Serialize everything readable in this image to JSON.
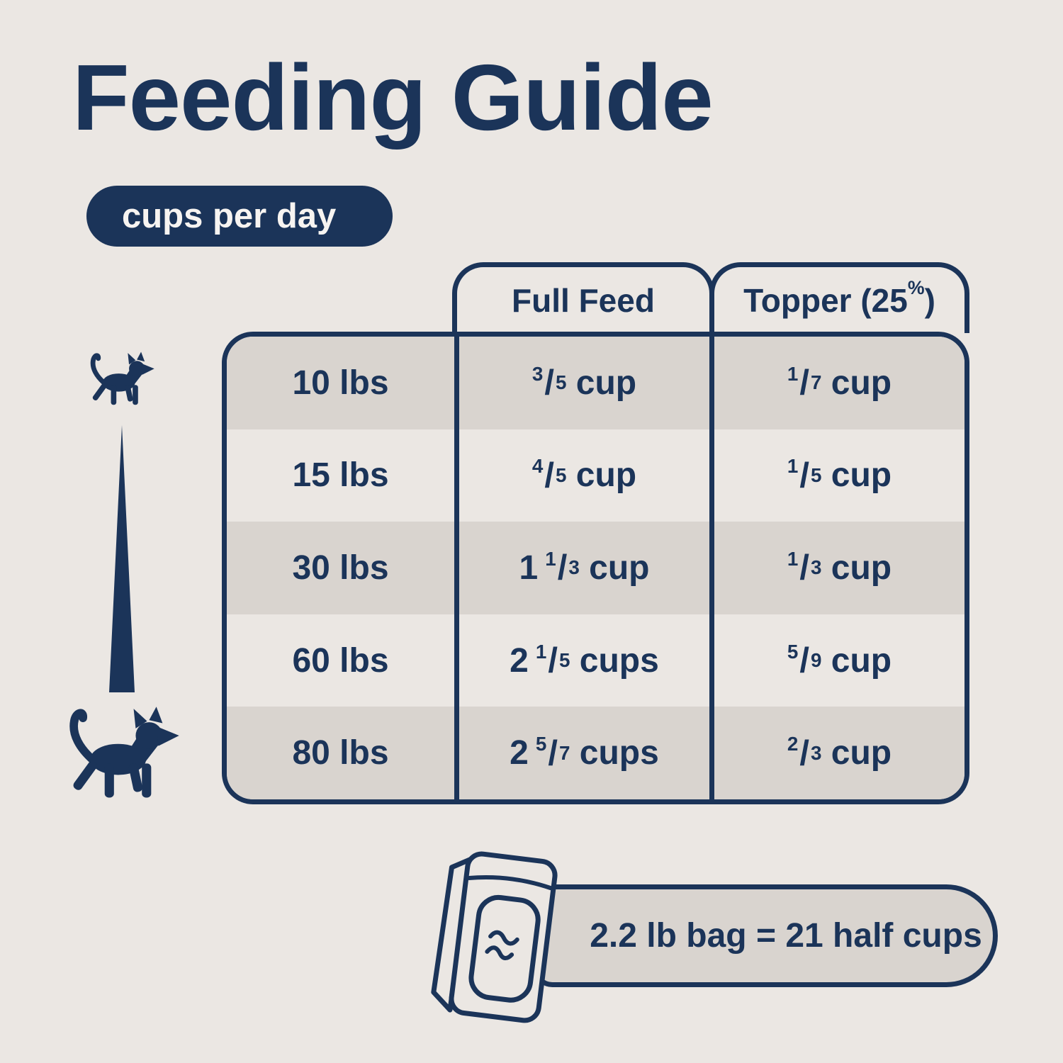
{
  "header": {
    "title": "Feeding Guide",
    "subtitle_pill": "cups per day"
  },
  "table": {
    "column_headers": [
      {
        "prefix": "Full Feed",
        "sup": "",
        "suffix": ""
      },
      {
        "prefix": "Topper (25",
        "sup": "%",
        "suffix": ")"
      }
    ],
    "rows": [
      {
        "weight": "10 lbs",
        "full_feed": {
          "whole": "",
          "numerator": "3",
          "denominator": "5",
          "unit": "cup"
        },
        "topper": {
          "whole": "",
          "numerator": "1",
          "denominator": "7",
          "unit": "cup"
        }
      },
      {
        "weight": "15 lbs",
        "full_feed": {
          "whole": "",
          "numerator": "4",
          "denominator": "5",
          "unit": "cup"
        },
        "topper": {
          "whole": "",
          "numerator": "1",
          "denominator": "5",
          "unit": "cup"
        }
      },
      {
        "weight": "30 lbs",
        "full_feed": {
          "whole": "1",
          "numerator": "1",
          "denominator": "3",
          "unit": "cup"
        },
        "topper": {
          "whole": "",
          "numerator": "1",
          "denominator": "3",
          "unit": "cup"
        }
      },
      {
        "weight": "60 lbs",
        "full_feed": {
          "whole": "2",
          "numerator": "1",
          "denominator": "5",
          "unit": "cups"
        },
        "topper": {
          "whole": "",
          "numerator": "5",
          "denominator": "9",
          "unit": "cup"
        }
      },
      {
        "weight": "80 lbs",
        "full_feed": {
          "whole": "2",
          "numerator": "5",
          "denominator": "7",
          "unit": "cups"
        },
        "topper": {
          "whole": "",
          "numerator": "2",
          "denominator": "3",
          "unit": "cup"
        }
      }
    ]
  },
  "footer": {
    "bag_note": "2.2 lb bag = 21 half cups"
  },
  "icons": {
    "small_dog": "small-dog-icon",
    "large_dog": "large-dog-icon",
    "size_taper": "size-taper-line",
    "bag": "dog-food-bag-icon"
  },
  "colors": {
    "background": "#EBE7E3",
    "navy": "#1B3459",
    "row_shade": "#D9D4CF",
    "text_on_navy": "#F7F4F1"
  }
}
